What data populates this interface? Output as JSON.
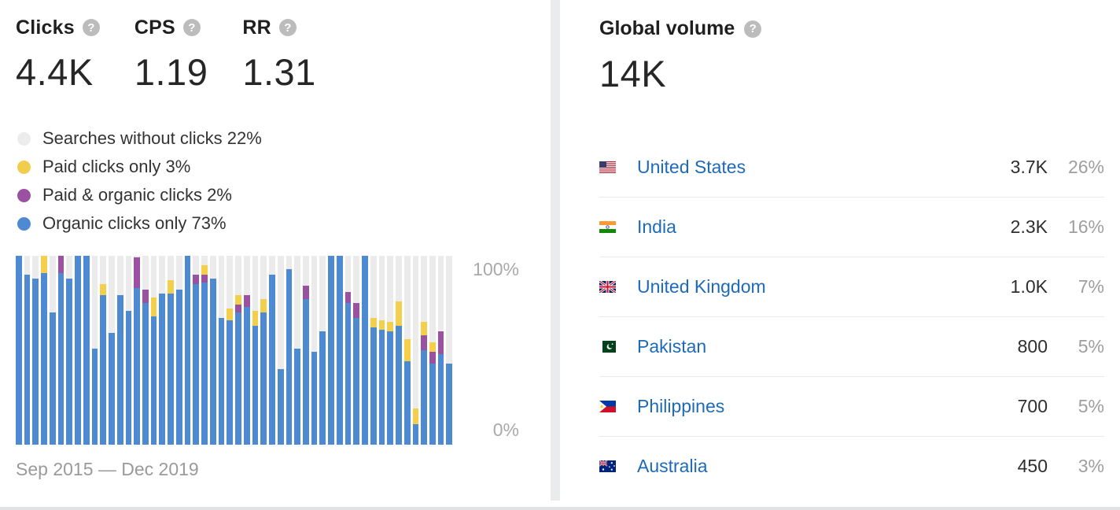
{
  "metrics": [
    {
      "label": "Clicks",
      "value": "4.4K"
    },
    {
      "label": "CPS",
      "value": "1.19"
    },
    {
      "label": "RR",
      "value": "1.31"
    }
  ],
  "legend": {
    "items": [
      {
        "label": "Searches without clicks 22%",
        "color": "#ececec"
      },
      {
        "label": "Paid clicks only 3%",
        "color": "#f0cd4c"
      },
      {
        "label": "Paid & organic clicks 2%",
        "color": "#9a52a0"
      },
      {
        "label": "Organic clicks only 73%",
        "color": "#4d8ad2"
      }
    ]
  },
  "chart_data": {
    "type": "bar",
    "subtype": "stacked-percent",
    "n_bars": 52,
    "x_start": "Sep 2015",
    "x_end": "Dec 2019",
    "ylim": [
      0,
      100
    ],
    "yticks": [
      "100%",
      "0%"
    ],
    "grid": false,
    "background_remainder": {
      "name": "Searches without clicks",
      "color": "#ebebeb"
    },
    "series": [
      {
        "name": "Organic clicks only",
        "color": "#4d8ad2",
        "values": [
          100,
          90,
          88,
          91,
          70,
          91,
          88,
          100,
          100,
          51,
          79,
          59,
          79,
          71,
          83,
          75,
          68,
          80,
          80,
          82,
          100,
          85,
          86,
          88,
          67,
          66,
          70,
          73,
          63,
          70,
          90,
          40,
          93,
          51,
          77,
          49,
          60,
          100,
          100,
          75,
          67,
          100,
          62,
          61,
          60,
          63,
          44,
          11,
          50,
          43,
          48,
          43
        ]
      },
      {
        "name": "Paid & organic clicks",
        "color": "#9a52a0",
        "values": [
          0,
          0,
          0,
          0,
          0,
          9,
          0,
          0,
          0,
          0,
          0,
          0,
          0,
          0,
          16,
          7,
          0,
          0,
          0,
          0,
          0,
          5,
          4,
          0,
          0,
          0,
          4,
          6,
          0,
          0,
          0,
          0,
          0,
          0,
          7,
          0,
          0,
          0,
          0,
          6,
          8,
          0,
          0,
          0,
          0,
          0,
          0,
          0,
          8,
          6,
          12,
          0
        ]
      },
      {
        "name": "Paid clicks only",
        "color": "#f3cf4b",
        "values": [
          0,
          0,
          0,
          9,
          0,
          0,
          0,
          0,
          0,
          0,
          6,
          0,
          0,
          0,
          0,
          0,
          10,
          0,
          7,
          0,
          0,
          0,
          5,
          0,
          0,
          6,
          5,
          0,
          8,
          7,
          0,
          0,
          0,
          0,
          0,
          0,
          0,
          0,
          0,
          0,
          0,
          0,
          5,
          5,
          5,
          13,
          12,
          8,
          7,
          5,
          0,
          0
        ]
      }
    ]
  },
  "date_range": "Sep 2015 — Dec 2019",
  "help_icon_glyph": "?",
  "global_volume": {
    "label": "Global volume",
    "value": "14K",
    "countries": [
      {
        "name": "United States",
        "volume": "3.7K",
        "percent": "26%",
        "flag": "us"
      },
      {
        "name": "India",
        "volume": "2.3K",
        "percent": "16%",
        "flag": "in"
      },
      {
        "name": "United Kingdom",
        "volume": "1.0K",
        "percent": "7%",
        "flag": "gb"
      },
      {
        "name": "Pakistan",
        "volume": "800",
        "percent": "5%",
        "flag": "pk"
      },
      {
        "name": "Philippines",
        "volume": "700",
        "percent": "5%",
        "flag": "ph"
      },
      {
        "name": "Australia",
        "volume": "450",
        "percent": "3%",
        "flag": "au"
      }
    ]
  }
}
